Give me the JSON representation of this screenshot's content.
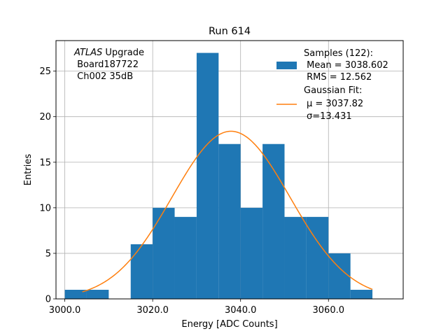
{
  "chart_data": {
    "type": "bar",
    "title": "Run 614",
    "xlabel": "Energy [ADC Counts]",
    "ylabel": "Entries",
    "xlim": [
      2998,
      3077
    ],
    "ylim": [
      0,
      28.35
    ],
    "x_ticks": [
      3000,
      3020,
      3040,
      3060
    ],
    "x_tick_labels": [
      "3000.0",
      "3020.0",
      "3040.0",
      "3060.0"
    ],
    "y_ticks": [
      0,
      5,
      10,
      15,
      20,
      25
    ],
    "y_tick_labels": [
      "0",
      "5",
      "10",
      "15",
      "20",
      "25"
    ],
    "grid": true,
    "legend_position": "top-right",
    "annotation": {
      "italic": "ATLAS",
      "line1_rest": " Upgrade",
      "line2": " Board187722",
      "line3": " Ch002 35dB"
    },
    "histogram": {
      "name": "Samples (122):",
      "color": "#1f77b4",
      "bins": [
        {
          "x0": 3000,
          "x1": 3005,
          "count": 1
        },
        {
          "x0": 3005,
          "x1": 3010,
          "count": 1
        },
        {
          "x0": 3015,
          "x1": 3020,
          "count": 6
        },
        {
          "x0": 3020,
          "x1": 3025,
          "count": 10
        },
        {
          "x0": 3025,
          "x1": 3030,
          "count": 9
        },
        {
          "x0": 3030,
          "x1": 3035,
          "count": 27
        },
        {
          "x0": 3035,
          "x1": 3040,
          "count": 17
        },
        {
          "x0": 3040,
          "x1": 3045,
          "count": 10
        },
        {
          "x0": 3045,
          "x1": 3050,
          "count": 17
        },
        {
          "x0": 3050,
          "x1": 3055,
          "count": 9
        },
        {
          "x0": 3055,
          "x1": 3060,
          "count": 9
        },
        {
          "x0": 3060,
          "x1": 3065,
          "count": 5
        },
        {
          "x0": 3065,
          "x1": 3070,
          "count": 1
        }
      ],
      "stats": [
        " Mean = 3038.602",
        " RMS = 12.562"
      ]
    },
    "fit": {
      "name": "Gaussian Fit:",
      "color": "#ff7f0e",
      "mu": 3037.82,
      "sigma": 13.431,
      "amplitude": 18.4,
      "x_range": [
        3004,
        3070
      ],
      "legend_mu": "μ = 3037.82",
      "legend_sigma": "σ=13.431"
    }
  }
}
